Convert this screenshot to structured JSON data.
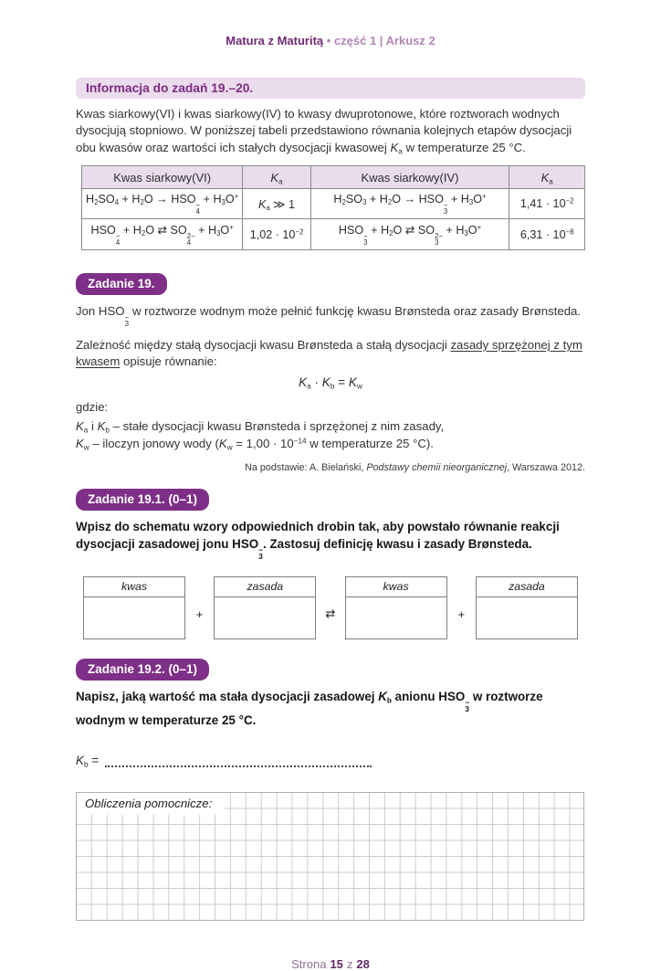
{
  "header": {
    "brand": "Matura z Maturitą",
    "meta": "• część 1 | Arkusz 2"
  },
  "info": {
    "title": "Informacja do zadań 19.–20.",
    "intro": "Kwas siarkowy(VI) i kwas siarkowy(IV) to kwasy dwuprotonowe, które roztworach wodnych dysocjują stopniowo. W poniższej tabeli przedstawiono równania kolejnych etapów dysocjacji obu kwasów oraz wartości ich stałych dysocjacji kwasowej *K*~a~ w temperaturze 25 °C.",
    "table": {
      "headers": [
        "Kwas siarkowy(VI)",
        "*K*~a~",
        "Kwas siarkowy(IV)",
        "*K*~a~"
      ],
      "rows": [
        [
          "H~2~SO~4~ + H~2~O → HSO{4|−} + H~3~O^+^",
          "*K*~a~ ≫ 1",
          "H~2~SO~3~ + H~2~O → HSO{3|−} + H~3~O^+^",
          "1,41 · 10^−2^"
        ],
        [
          "HSO{4|−} + H~2~O ⇄ SO{4|2−} + H~3~O^+^",
          "1,02 · 10^−2^",
          "HSO{3|−} + H~2~O ⇄ SO{3|2−} + H~3~O^+^",
          "6,31 · 10^−8^"
        ]
      ]
    }
  },
  "task19": {
    "badge": "Zadanie 19.",
    "p1": "Jon HSO{3|−} w roztworze wodnym może pełnić funkcję kwasu Brønsteda oraz zasady Brønsteda.",
    "p2": "Zależność między stałą dysocjacji kwasu Brønsteda a stałą dysocjacji __zasady sprzężonej z tym kwasem__ opisuje równanie:",
    "equation": "*K*~a~ · *K*~b~ = *K*~w~",
    "gdzie": "gdzie:",
    "def1": "*K*~a~ i *K*~b~ – stałe dysocjacji kwasu Brønsteda i sprzężonej z nim zasady,",
    "def2": "*K*~w~ – iloczyn jonowy wody (*K*~w~ = 1,00 · 10^−14^ w temperaturze 25 °C).",
    "source": "Na podstawie: A. Bielański, *Podstawy chemii nieorganicznej*, Warszawa 2012."
  },
  "task19_1": {
    "badge": "Zadanie 19.1. (0–1)",
    "instruction": "Wpisz do schematu wzory odpowiednich drobin tak, aby powstało równanie reakcji dysocjacji zasadowej jonu HSO{3|−}. Zastosuj definicję kwasu i zasady Brønsteda.",
    "schema": {
      "boxes": [
        "kwas",
        "zasada",
        "kwas",
        "zasada"
      ],
      "ops": [
        "+",
        "⇄",
        "+"
      ]
    }
  },
  "task19_2": {
    "badge": "Zadanie 19.2. (0–1)",
    "instruction": "Napisz, jaką wartość ma stała dysocjacji zasadowej *K*~b~ anionu HSO{3|−} w roztworze wodnym w temperaturze 25 °C.",
    "answer_prefix": "*K*~b~ =",
    "calc_label": "Obliczenia pomocnicze:"
  },
  "footer": {
    "label": "Strona",
    "page": "15",
    "of": "z",
    "total": "28"
  },
  "colors": {
    "accent_purple": "#7e2f87",
    "badge_bg": "#7e2f87",
    "info_bg": "#eadcec",
    "table_header_bg": "#e9dded"
  }
}
